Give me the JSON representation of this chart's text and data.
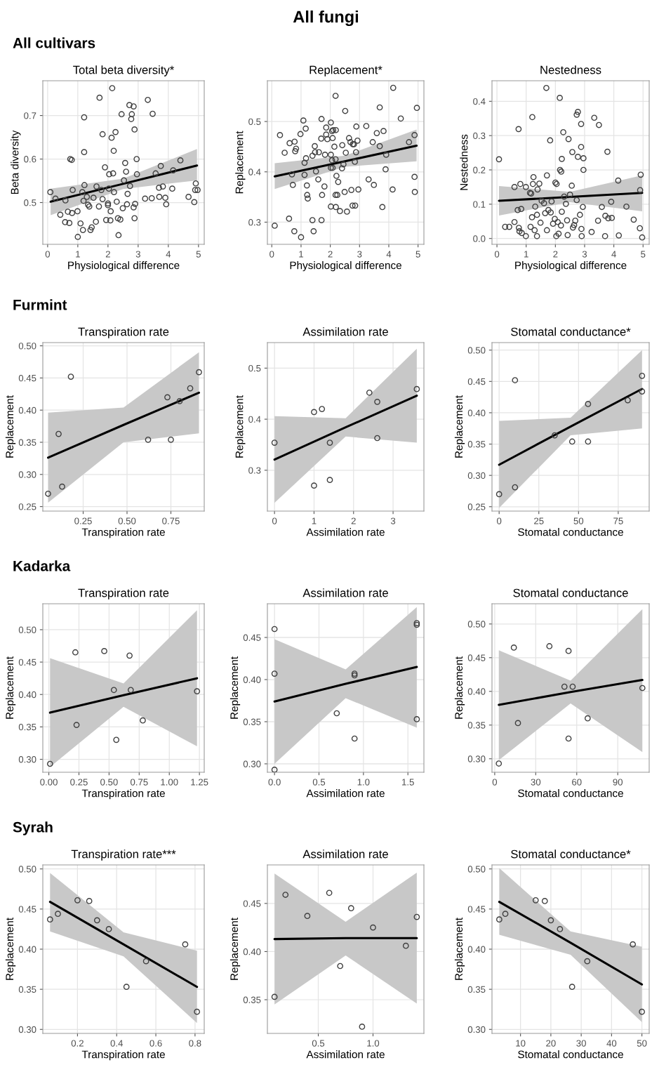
{
  "chart_data": [
    {
      "type": "scatter",
      "title": "Total beta diversity*",
      "xlabel": "Physiological difference",
      "ylabel": "Beta diversity",
      "annotations": [
        "All fungi",
        "All cultivars"
      ],
      "grid": true,
      "xlim": [
        -0.16,
        5.19
      ],
      "xticks": [
        0,
        1,
        2,
        3,
        4,
        5
      ],
      "ylim": [
        0.404,
        0.78
      ],
      "yticks": [
        0.5,
        0.6,
        0.7
      ],
      "series": [
        {
          "marker": "circle",
          "color": "#404040",
          "x": [
            0.09,
            0.26,
            0.42,
            0.59,
            0.58,
            0.72,
            0.67,
            0.75,
            0.8,
            0.83,
            0.81,
            0.99,
            1.0,
            1.09,
            1.17,
            1.19,
            1.21,
            1.21,
            1.22,
            1.15,
            1.34,
            1.38,
            1.42,
            1.46,
            1.3,
            1.52,
            1.6,
            1.62,
            1.7,
            1.72,
            1.82,
            1.82,
            1.9,
            1.78,
            1.94,
            2.0,
            2.0,
            2.03,
            2.04,
            2.08,
            2.09,
            2.12,
            2.14,
            2.17,
            2.19,
            2.2,
            2.25,
            2.29,
            2.33,
            2.35,
            2.41,
            2.45,
            2.49,
            2.53,
            2.57,
            2.6,
            2.63,
            2.65,
            2.73,
            2.71,
            2.77,
            2.79,
            2.85,
            2.88,
            2.85,
            2.88,
            2.9,
            2.95,
            2.96,
            3.23,
            3.32,
            3.45,
            3.48,
            3.58,
            3.69,
            3.75,
            3.82,
            3.7,
            3.9,
            3.93,
            4.13,
            4.16,
            4.4,
            4.67,
            4.86,
            4.91,
            4.89,
            4.97
          ],
          "values": [
            0.524,
            0.509,
            0.472,
            0.505,
            0.455,
            0.453,
            0.479,
            0.6,
            0.598,
            0.529,
            0.476,
            0.48,
            0.421,
            0.452,
            0.437,
            0.504,
            0.616,
            0.696,
            0.54,
            0.524,
            0.495,
            0.491,
            0.437,
            0.443,
            0.513,
            0.511,
            0.456,
            0.537,
            0.491,
            0.741,
            0.657,
            0.508,
            0.581,
            0.529,
            0.46,
            0.498,
            0.494,
            0.532,
            0.565,
            0.459,
            0.48,
            0.649,
            0.763,
            0.567,
            0.619,
            0.524,
            0.662,
            0.502,
            0.464,
            0.425,
            0.461,
            0.703,
            0.487,
            0.551,
            0.591,
            0.571,
            0.496,
            0.52,
            0.538,
            0.724,
            0.692,
            0.703,
            0.721,
            0.668,
            0.489,
            0.464,
            0.497,
            0.6,
            0.565,
            0.509,
            0.736,
            0.51,
            0.704,
            0.567,
            0.534,
            0.584,
            0.537,
            0.513,
            0.511,
            0.496,
            0.532,
            0.574,
            0.597,
            0.513,
            0.501,
            0.544,
            0.529,
            0.529
          ]
        },
        {
          "type": "line",
          "color": "#000000",
          "x": [
            0.1,
            2.5,
            4.95
          ],
          "values": [
            0.502,
            0.543,
            0.585
          ],
          "lower": [
            0.471,
            0.531,
            0.551
          ],
          "upper": [
            0.532,
            0.555,
            0.623
          ]
        }
      ]
    },
    {
      "type": "scatter",
      "title": "Replacement*",
      "xlabel": "Physiological difference",
      "ylabel": "Replacement",
      "grid": true,
      "xlim": [
        -0.15,
        5.2
      ],
      "xticks": [
        0,
        1,
        2,
        3,
        4,
        5
      ],
      "ylim": [
        0.256,
        0.581
      ],
      "yticks": [
        0.3,
        0.4,
        0.5
      ],
      "series": [
        {
          "marker": "circle",
          "color": "#404040",
          "x": [
            0.1,
            0.28,
            0.44,
            0.59,
            0.61,
            0.69,
            0.72,
            0.77,
            0.78,
            0.83,
            0.8,
            1.0,
            0.98,
            1.08,
            1.12,
            1.16,
            1.12,
            1.17,
            1.2,
            1.21,
            1.23,
            1.39,
            1.43,
            1.47,
            1.48,
            1.39,
            1.7,
            1.69,
            1.72,
            1.7,
            1.59,
            1.61,
            1.8,
            1.82,
            1.86,
            1.51,
            2.02,
            2.06,
            2.1,
            2.18,
            2.19,
            1.86,
            1.9,
            2.08,
            2.14,
            2.02,
            2.06,
            2.18,
            2.02,
            2.08,
            2.21,
            2.27,
            2.18,
            2.24,
            2.02,
            2.19,
            2.33,
            2.4,
            2.45,
            2.41,
            2.49,
            2.51,
            2.53,
            2.57,
            2.64,
            2.69,
            2.72,
            2.77,
            2.81,
            2.76,
            2.85,
            2.84,
            2.88,
            2.89,
            2.93,
            2.96,
            3.23,
            3.31,
            3.49,
            3.45,
            3.59,
            3.69,
            3.69,
            3.78,
            3.82,
            3.91,
            3.89,
            4.13,
            4.15,
            4.41,
            4.69,
            4.88,
            4.88,
            4.89,
            4.96
          ],
          "values": [
            0.293,
            0.473,
            0.438,
            0.307,
            0.457,
            0.395,
            0.374,
            0.282,
            0.46,
            0.446,
            0.441,
            0.27,
            0.475,
            0.502,
            0.418,
            0.486,
            0.394,
            0.427,
            0.373,
            0.354,
            0.347,
            0.304,
            0.282,
            0.451,
            0.439,
            0.432,
            0.505,
            0.466,
            0.354,
            0.304,
            0.385,
            0.439,
            0.371,
            0.434,
            0.488,
            0.401,
            0.498,
            0.481,
            0.483,
            0.551,
            0.483,
            0.474,
            0.465,
            0.467,
            0.45,
            0.434,
            0.423,
            0.425,
            0.408,
            0.408,
            0.392,
            0.38,
            0.354,
            0.354,
            0.331,
            0.33,
            0.322,
            0.407,
            0.415,
            0.453,
            0.36,
            0.521,
            0.438,
            0.321,
            0.467,
            0.459,
            0.364,
            0.455,
            0.455,
            0.333,
            0.333,
            0.42,
            0.439,
            0.49,
            0.462,
            0.365,
            0.491,
            0.385,
            0.374,
            0.459,
            0.477,
            0.451,
            0.528,
            0.33,
            0.481,
            0.434,
            0.405,
            0.365,
            0.567,
            0.506,
            0.459,
            0.473,
            0.39,
            0.36,
            0.527
          ]
        },
        {
          "type": "line",
          "color": "#000000",
          "x": [
            0.1,
            2.5,
            4.95
          ],
          "values": [
            0.391,
            0.421,
            0.452
          ],
          "lower": [
            0.366,
            0.41,
            0.421
          ],
          "upper": [
            0.417,
            0.432,
            0.484
          ]
        }
      ]
    },
    {
      "type": "scatter",
      "title": "Nestedness",
      "xlabel": "Physiological difference",
      "ylabel": "Nestedness",
      "grid": true,
      "xlim": [
        -0.17,
        5.21
      ],
      "xticks": [
        0,
        1,
        2,
        3,
        4,
        5
      ],
      "ylim": [
        -0.017,
        0.46
      ],
      "yticks": [
        {
          "value": 0,
          "label": "0.0"
        },
        0.1,
        0.2,
        0.3,
        0.4
      ],
      "series": [
        {
          "marker": "circle",
          "color": "#404040",
          "x": [
            0.07,
            0.28,
            0.42,
            0.6,
            0.6,
            0.71,
            0.74,
            0.75,
            0.77,
            0.8,
            0.83,
            0.85,
            0.99,
            0.99,
            1.13,
            1.17,
            1.15,
            1.2,
            1.21,
            1.23,
            1.25,
            1.29,
            1.31,
            1.37,
            1.39,
            1.37,
            1.45,
            1.49,
            1.53,
            1.61,
            1.65,
            1.69,
            1.71,
            1.71,
            1.76,
            1.82,
            1.84,
            1.87,
            1.92,
            1.98,
            2.0,
            2.04,
            2.03,
            2.08,
            2.11,
            2.15,
            2.16,
            2.2,
            2.19,
            2.22,
            2.22,
            2.27,
            2.3,
            2.36,
            2.42,
            2.45,
            2.4,
            2.5,
            2.56,
            2.58,
            2.6,
            2.64,
            2.68,
            2.73,
            2.73,
            2.77,
            2.77,
            2.84,
            2.88,
            2.88,
            2.89,
            2.9,
            2.96,
            2.96,
            2.94,
            3.24,
            3.33,
            3.46,
            3.49,
            3.59,
            3.7,
            3.71,
            3.78,
            3.81,
            3.91,
            3.93,
            4.15,
            4.17,
            4.43,
            4.68,
            4.89,
            4.9,
            4.92,
            4.97
          ],
          "values": [
            0.231,
            0.034,
            0.034,
            0.15,
            0.048,
            0.083,
            0.319,
            0.031,
            0.021,
            0.159,
            0.086,
            0.016,
            0.007,
            0.15,
            0.133,
            0.131,
            0.034,
            0.062,
            0.354,
            0.159,
            0.179,
            0.024,
            0.093,
            0.069,
            0.143,
            0.007,
            0.16,
            0.046,
            0.11,
            0.103,
            0.074,
            0.439,
            0.184,
            0.024,
            0.083,
            0.286,
            0.076,
            0.108,
            0.043,
            0.057,
            0.163,
            0.159,
            0.007,
            0.048,
            0.014,
            0.41,
            0.2,
            0.195,
            0.038,
            0.232,
            0.078,
            0.31,
            0.122,
            0.101,
            0.01,
            0.29,
            0.053,
            0.128,
            0.154,
            0.252,
            0.032,
            0.039,
            0.052,
            0.112,
            0.361,
            0.369,
            0.238,
            0.069,
            0.267,
            0.334,
            0.028,
            0.007,
            0.234,
            0.2,
            0.092,
            0.019,
            0.352,
            0.052,
            0.331,
            0.092,
            0.007,
            0.066,
            0.253,
            0.059,
            0.107,
            0.06,
            0.169,
            0.009,
            0.093,
            0.055,
            0.03,
            0.141,
            0.186,
            0.003
          ]
        },
        {
          "type": "line",
          "color": "#000000",
          "x": [
            0.07,
            2.5,
            4.97
          ],
          "values": [
            0.11,
            0.121,
            0.133
          ],
          "lower": [
            0.067,
            0.106,
            0.079
          ],
          "upper": [
            0.153,
            0.136,
            0.184
          ]
        }
      ]
    },
    {
      "type": "scatter",
      "title": "Transpiration rate",
      "xlabel": "Transpiration rate",
      "ylabel": "Replacement",
      "annotations": [
        "Furmint"
      ],
      "grid": true,
      "xlim": [
        0.02,
        0.94
      ],
      "xticks": [
        {
          "value": 0.25,
          "label": "0.25"
        },
        {
          "value": 0.5,
          "label": "0.50"
        },
        {
          "value": 0.75,
          "label": "0.75"
        }
      ],
      "ylim": [
        0.243,
        0.505
      ],
      "yticks": [
        {
          "value": 0.25,
          "label": "0.25"
        },
        {
          "value": 0.3,
          "label": "0.30"
        },
        {
          "value": 0.35,
          "label": "0.35"
        },
        {
          "value": 0.4,
          "label": "0.40"
        },
        {
          "value": 0.45,
          "label": "0.45"
        },
        {
          "value": 0.5,
          "label": "0.50"
        }
      ],
      "series": [
        {
          "marker": "circle",
          "color": "#404040",
          "x": [
            0.05,
            0.11,
            0.13,
            0.18,
            0.62,
            0.73,
            0.75,
            0.8,
            0.86,
            0.91
          ],
          "values": [
            0.27,
            0.363,
            0.281,
            0.452,
            0.354,
            0.42,
            0.354,
            0.414,
            0.434,
            0.459
          ]
        },
        {
          "type": "line",
          "color": "#000000",
          "x": [
            0.05,
            0.48,
            0.91
          ],
          "values": [
            0.326,
            0.377,
            0.427
          ],
          "lower": [
            0.256,
            0.35,
            0.364
          ],
          "upper": [
            0.396,
            0.404,
            0.49
          ]
        }
      ]
    },
    {
      "type": "scatter",
      "title": "Assimilation rate",
      "xlabel": "Assimilation rate",
      "ylabel": "Replacement",
      "grid": true,
      "xlim": [
        -0.18,
        3.78
      ],
      "xticks": [
        0,
        1,
        2,
        3
      ],
      "ylim": [
        0.22,
        0.55
      ],
      "yticks": [
        0.3,
        0.4,
        0.5
      ],
      "series": [
        {
          "marker": "circle",
          "color": "#404040",
          "x": [
            0,
            1.0,
            1.0,
            1.2,
            1.4,
            1.4,
            2.4,
            2.6,
            2.6,
            3.6
          ],
          "values": [
            0.354,
            0.414,
            0.27,
            0.42,
            0.354,
            0.281,
            0.452,
            0.434,
            0.363,
            0.459
          ]
        },
        {
          "type": "line",
          "color": "#000000",
          "x": [
            0,
            1.8,
            3.6
          ],
          "values": [
            0.321,
            0.384,
            0.446
          ],
          "lower": [
            0.236,
            0.366,
            0.354
          ],
          "upper": [
            0.406,
            0.402,
            0.538
          ]
        }
      ]
    },
    {
      "type": "scatter",
      "title": "Stomatal conductance*",
      "xlabel": "Stomatal conductance",
      "ylabel": "Replacement",
      "grid": true,
      "xlim": [
        -4.5,
        94.5
      ],
      "xticks": [
        0,
        25,
        50,
        75
      ],
      "ylim": [
        0.243,
        0.512
      ],
      "yticks": [
        {
          "value": 0.25,
          "label": "0.25"
        },
        {
          "value": 0.3,
          "label": "0.30"
        },
        {
          "value": 0.35,
          "label": "0.35"
        },
        {
          "value": 0.4,
          "label": "0.40"
        },
        {
          "value": 0.45,
          "label": "0.45"
        },
        {
          "value": 0.5,
          "label": "0.50"
        }
      ],
      "series": [
        {
          "marker": "circle",
          "color": "#404040",
          "x": [
            0,
            10,
            10,
            35,
            46,
            56,
            56,
            81,
            90,
            90
          ],
          "values": [
            0.27,
            0.452,
            0.281,
            0.364,
            0.354,
            0.414,
            0.354,
            0.42,
            0.459,
            0.434
          ]
        },
        {
          "type": "line",
          "color": "#000000",
          "x": [
            0,
            45,
            90
          ],
          "values": [
            0.317,
            0.378,
            0.438
          ],
          "lower": [
            0.248,
            0.364,
            0.375
          ],
          "upper": [
            0.387,
            0.392,
            0.5
          ]
        }
      ]
    },
    {
      "type": "scatter",
      "title": "Transpiration rate",
      "xlabel": "Transpiration rate",
      "ylabel": "Replacement",
      "annotations": [
        "Kadarka"
      ],
      "grid": true,
      "xlim": [
        -0.05,
        1.29
      ],
      "xticks": [
        {
          "value": 0,
          "label": "0.00"
        },
        {
          "value": 0.25,
          "label": "0.25"
        },
        {
          "value": 0.5,
          "label": "0.50"
        },
        {
          "value": 0.75,
          "label": "0.75"
        },
        {
          "value": 1.0,
          "label": "1.00"
        },
        {
          "value": 1.25,
          "label": "1.25"
        }
      ],
      "ylim": [
        0.28,
        0.54
      ],
      "yticks": [
        {
          "value": 0.3,
          "label": "0.30"
        },
        {
          "value": 0.35,
          "label": "0.35"
        },
        {
          "value": 0.4,
          "label": "0.40"
        },
        {
          "value": 0.45,
          "label": "0.45"
        },
        {
          "value": 0.5,
          "label": "0.50"
        }
      ],
      "series": [
        {
          "marker": "circle",
          "color": "#404040",
          "x": [
            0.01,
            0.22,
            0.23,
            0.46,
            0.54,
            0.56,
            0.67,
            0.68,
            0.78,
            1.23
          ],
          "values": [
            0.293,
            0.465,
            0.353,
            0.467,
            0.407,
            0.33,
            0.46,
            0.407,
            0.36,
            0.405
          ]
        },
        {
          "type": "line",
          "color": "#000000",
          "x": [
            0.01,
            0.62,
            1.23
          ],
          "values": [
            0.372,
            0.399,
            0.425
          ],
          "lower": [
            0.288,
            0.381,
            0.32
          ],
          "upper": [
            0.456,
            0.417,
            0.53
          ]
        }
      ]
    },
    {
      "type": "scatter",
      "title": "Assimilation rate",
      "xlabel": "Assimilation rate",
      "ylabel": "Replacement",
      "grid": true,
      "xlim": [
        -0.08,
        1.68
      ],
      "xticks": [
        {
          "value": 0,
          "label": "0.0"
        },
        0.5,
        {
          "value": 1.0,
          "label": "1.0"
        },
        1.5
      ],
      "ylim": [
        0.29,
        0.49
      ],
      "yticks": [
        {
          "value": 0.3,
          "label": "0.30"
        },
        {
          "value": 0.35,
          "label": "0.35"
        },
        {
          "value": 0.4,
          "label": "0.40"
        },
        {
          "value": 0.45,
          "label": "0.45"
        }
      ],
      "series": [
        {
          "marker": "circle",
          "color": "#404040",
          "x": [
            0,
            0,
            0,
            0.7,
            0.9,
            0.9,
            0.9,
            1.6,
            1.6,
            1.6
          ],
          "values": [
            0.293,
            0.407,
            0.46,
            0.36,
            0.407,
            0.405,
            0.33,
            0.467,
            0.465,
            0.353
          ]
        },
        {
          "type": "line",
          "color": "#000000",
          "x": [
            0,
            0.8,
            1.6
          ],
          "values": [
            0.374,
            0.395,
            0.415
          ],
          "lower": [
            0.3,
            0.378,
            0.343
          ],
          "upper": [
            0.448,
            0.412,
            0.486
          ]
        }
      ]
    },
    {
      "type": "scatter",
      "title": "Stomatal conductance",
      "xlabel": "Stomatal conductance",
      "ylabel": "Replacement",
      "grid": true,
      "xlim": [
        -2,
        113
      ],
      "xticks": [
        0,
        30,
        60,
        90
      ],
      "ylim": [
        0.28,
        0.53
      ],
      "yticks": [
        {
          "value": 0.3,
          "label": "0.30"
        },
        {
          "value": 0.35,
          "label": "0.35"
        },
        {
          "value": 0.4,
          "label": "0.40"
        },
        {
          "value": 0.45,
          "label": "0.45"
        },
        {
          "value": 0.5,
          "label": "0.50"
        }
      ],
      "series": [
        {
          "marker": "circle",
          "color": "#404040",
          "x": [
            3,
            14,
            17,
            40,
            51,
            54,
            54,
            57,
            68,
            108
          ],
          "values": [
            0.293,
            0.465,
            0.353,
            0.467,
            0.407,
            0.46,
            0.33,
            0.407,
            0.36,
            0.405
          ]
        },
        {
          "type": "line",
          "color": "#000000",
          "x": [
            3,
            55.5,
            108
          ],
          "values": [
            0.38,
            0.399,
            0.417
          ],
          "lower": [
            0.298,
            0.382,
            0.31
          ],
          "upper": [
            0.461,
            0.416,
            0.522
          ]
        }
      ]
    },
    {
      "type": "scatter",
      "title": "Transpiration rate***",
      "xlabel": "Transpiration rate",
      "ylabel": "Replacement",
      "annotations": [
        "Syrah"
      ],
      "grid": true,
      "xlim": [
        0.023,
        0.847
      ],
      "xticks": [
        0.2,
        0.4,
        0.6,
        0.8
      ],
      "ylim": [
        0.295,
        0.505
      ],
      "yticks": [
        {
          "value": 0.3,
          "label": "0.30"
        },
        {
          "value": 0.35,
          "label": "0.35"
        },
        {
          "value": 0.4,
          "label": "0.40"
        },
        {
          "value": 0.45,
          "label": "0.45"
        },
        {
          "value": 0.5,
          "label": "0.50"
        }
      ],
      "series": [
        {
          "marker": "circle",
          "color": "#404040",
          "x": [
            0.06,
            0.1,
            0.2,
            0.26,
            0.3,
            0.36,
            0.45,
            0.55,
            0.75,
            0.81
          ],
          "values": [
            0.437,
            0.444,
            0.461,
            0.46,
            0.436,
            0.425,
            0.353,
            0.385,
            0.406,
            0.322
          ]
        },
        {
          "type": "line",
          "color": "#000000",
          "x": [
            0.06,
            0.435,
            0.81
          ],
          "values": [
            0.459,
            0.406,
            0.353
          ],
          "lower": [
            0.422,
            0.391,
            0.308
          ],
          "upper": [
            0.495,
            0.421,
            0.398
          ]
        }
      ]
    },
    {
      "type": "scatter",
      "title": "Assimilation rate",
      "xlabel": "Assimilation rate",
      "ylabel": "Replacement",
      "grid": true,
      "xlim": [
        0.035,
        1.465
      ],
      "xticks": [
        0.5,
        {
          "value": 1.0,
          "label": "1.0"
        }
      ],
      "ylim": [
        0.315,
        0.49
      ],
      "yticks": [
        {
          "value": 0.35,
          "label": "0.35"
        },
        {
          "value": 0.4,
          "label": "0.40"
        },
        {
          "value": 0.45,
          "label": "0.45"
        }
      ],
      "series": [
        {
          "marker": "circle",
          "color": "#404040",
          "x": [
            0.1,
            0.2,
            0.4,
            0.6,
            0.7,
            0.8,
            0.9,
            1.0,
            1.3,
            1.4
          ],
          "values": [
            0.353,
            0.459,
            0.437,
            0.461,
            0.385,
            0.445,
            0.322,
            0.425,
            0.406,
            0.436
          ]
        },
        {
          "type": "line",
          "color": "#000000",
          "x": [
            0.1,
            0.75,
            1.4
          ],
          "values": [
            0.413,
            0.414,
            0.414
          ],
          "lower": [
            0.345,
            0.396,
            0.346
          ],
          "upper": [
            0.481,
            0.431,
            0.482
          ]
        }
      ]
    },
    {
      "type": "scatter",
      "title": "Stomatal conductance*",
      "xlabel": "Stomatal conductance",
      "ylabel": "Replacement",
      "grid": true,
      "xlim": [
        0.6,
        52.4
      ],
      "xticks": [
        10,
        20,
        30,
        40,
        50
      ],
      "ylim": [
        0.295,
        0.505
      ],
      "yticks": [
        {
          "value": 0.3,
          "label": "0.30"
        },
        {
          "value": 0.35,
          "label": "0.35"
        },
        {
          "value": 0.4,
          "label": "0.40"
        },
        {
          "value": 0.45,
          "label": "0.45"
        },
        {
          "value": 0.5,
          "label": "0.50"
        }
      ],
      "series": [
        {
          "marker": "circle",
          "color": "#404040",
          "x": [
            3,
            5,
            15,
            18,
            20,
            23,
            27,
            32,
            47,
            50
          ],
          "values": [
            0.437,
            0.444,
            0.461,
            0.46,
            0.436,
            0.425,
            0.353,
            0.385,
            0.406,
            0.322
          ]
        },
        {
          "type": "line",
          "color": "#000000",
          "x": [
            3,
            26.5,
            50
          ],
          "values": [
            0.459,
            0.408,
            0.356
          ],
          "lower": [
            0.418,
            0.393,
            0.309
          ],
          "upper": [
            0.501,
            0.422,
            0.403
          ]
        }
      ]
    }
  ]
}
